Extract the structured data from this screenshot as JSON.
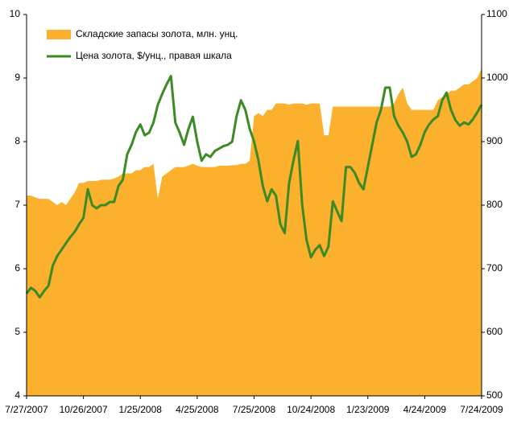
{
  "chart_data": {
    "type": "area_line",
    "categories": [
      "7/27/2007",
      null,
      null,
      null,
      null,
      null,
      null,
      null,
      null,
      null,
      null,
      null,
      null,
      "10/26/2007",
      null,
      null,
      null,
      null,
      null,
      null,
      null,
      null,
      null,
      null,
      null,
      null,
      "1/25/2008",
      null,
      null,
      null,
      null,
      null,
      null,
      null,
      null,
      null,
      null,
      null,
      null,
      "4/25/2008",
      null,
      null,
      null,
      null,
      null,
      null,
      null,
      null,
      null,
      null,
      null,
      null,
      "7/25/2008",
      null,
      null,
      null,
      null,
      null,
      null,
      null,
      null,
      null,
      null,
      null,
      null,
      "10/24/2008",
      null,
      null,
      null,
      null,
      null,
      null,
      null,
      null,
      null,
      null,
      null,
      null,
      "1/23/2009",
      null,
      null,
      null,
      null,
      null,
      null,
      null,
      null,
      null,
      null,
      null,
      null,
      "4/24/2009",
      null,
      null,
      null,
      null,
      null,
      null,
      null,
      null,
      null,
      null,
      null,
      null,
      "7/24/2009"
    ],
    "series": [
      {
        "name": "Складские запасы золота, млн. унц.",
        "color": "#fbb02e",
        "axis": "y",
        "values": [
          7.15,
          7.15,
          7.12,
          7.1,
          7.1,
          7.1,
          7.05,
          7.0,
          7.05,
          7.0,
          7.1,
          7.2,
          7.35,
          7.35,
          7.38,
          7.38,
          7.38,
          7.4,
          7.4,
          7.4,
          7.42,
          7.45,
          7.5,
          7.5,
          7.5,
          7.55,
          7.55,
          7.6,
          7.6,
          7.65,
          7.1,
          7.45,
          7.5,
          7.55,
          7.6,
          7.6,
          7.6,
          7.62,
          7.65,
          7.62,
          7.6,
          7.6,
          7.6,
          7.6,
          7.62,
          7.62,
          7.62,
          7.63,
          7.63,
          7.65,
          7.65,
          7.7,
          8.4,
          8.45,
          8.4,
          8.5,
          8.5,
          8.6,
          8.6,
          8.6,
          8.58,
          8.6,
          8.6,
          8.6,
          8.58,
          8.6,
          8.6,
          8.6,
          8.1,
          8.1,
          8.55,
          8.55,
          8.55,
          8.55,
          8.55,
          8.55,
          8.55,
          8.55,
          8.55,
          8.55,
          8.55,
          8.55,
          8.55,
          8.55,
          8.6,
          8.75,
          8.85,
          8.6,
          8.5,
          8.5,
          8.5,
          8.5,
          8.5,
          8.5,
          8.65,
          8.7,
          8.75,
          8.8,
          8.8,
          8.85,
          8.9,
          8.9,
          8.95,
          9.0,
          9.15
        ]
      },
      {
        "name": "Цена золота, $/унц., правая шкала",
        "color": "#3b8a23",
        "axis": "y2",
        "values": [
          661,
          670,
          665,
          655,
          665,
          673,
          705,
          720,
          730,
          740,
          750,
          758,
          770,
          780,
          825,
          800,
          795,
          800,
          800,
          805,
          805,
          830,
          840,
          880,
          895,
          915,
          927,
          910,
          914,
          930,
          958,
          975,
          990,
          1003,
          930,
          914,
          895,
          920,
          939,
          900,
          870,
          880,
          876,
          885,
          889,
          893,
          895,
          900,
          940,
          965,
          950,
          920,
          900,
          870,
          830,
          806,
          825,
          815,
          770,
          756,
          835,
          870,
          901,
          800,
          745,
          718,
          730,
          737,
          720,
          735,
          806,
          790,
          775,
          860,
          860,
          851,
          835,
          825,
          860,
          895,
          930,
          950,
          985,
          985,
          940,
          925,
          914,
          900,
          876,
          880,
          895,
          915,
          927,
          935,
          940,
          965,
          977,
          950,
          934,
          925,
          930,
          927,
          935,
          946,
          958
        ]
      }
    ],
    "ylim": [
      4,
      10
    ],
    "yticks": [
      4,
      5,
      6,
      7,
      8,
      9,
      10
    ],
    "y2lim": [
      500,
      1100
    ],
    "y2ticks": [
      500,
      600,
      700,
      800,
      900,
      1000,
      1100
    ],
    "grid": false
  }
}
